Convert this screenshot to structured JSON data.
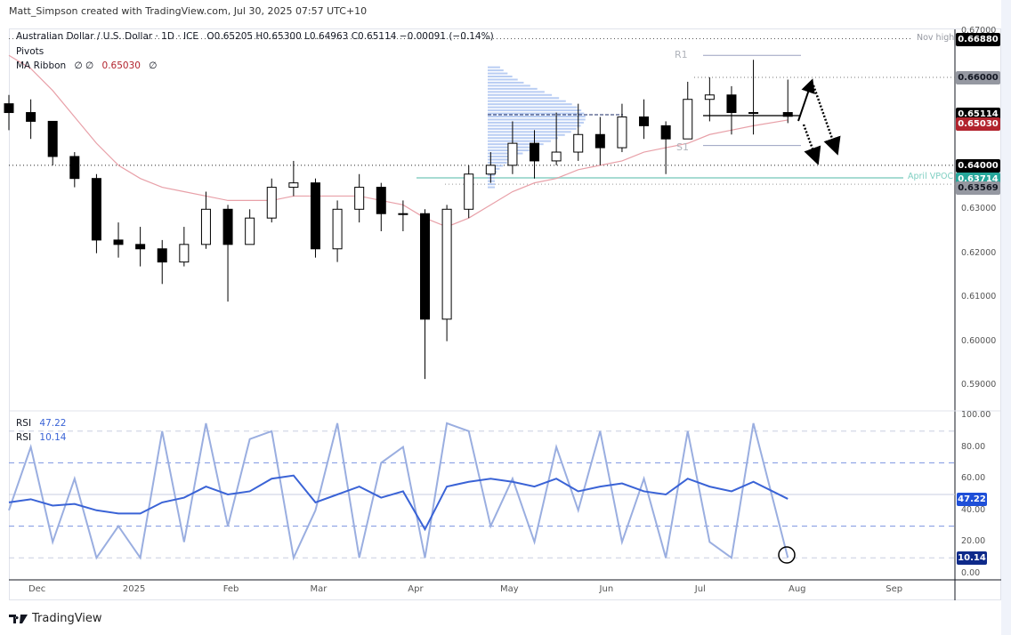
{
  "credit": "Matt_Simpson created with TradingView.com, Jul 30, 2025 07:57 UTC+10",
  "legend": {
    "symbol": "Australian Dollar / U.S. Dollar · 1D · ICE",
    "ohlc": "O0.65205 H0.65300 L0.64963 C0.65114 −0.00091 (−0.14%)",
    "pivots": "Pivots",
    "ma_label": "MA Ribbon",
    "ma_params": "∅ ∅",
    "ma_value": "0.65030",
    "ma_tail": "∅",
    "rsi1_label": "RSI",
    "rsi1_value": "47.22",
    "rsi2_label": "RSI",
    "rsi2_value": "10.14"
  },
  "annotations": {
    "nov_high": "Nov high",
    "april_vpoc": "April VPOC",
    "r1": "R1",
    "s1": "S1"
  },
  "footer": {
    "brand": "TradingView"
  },
  "colors": {
    "up": "#ffffff",
    "down": "#000000",
    "ma": "#e8a0a8",
    "rsi14": "#3a63d6",
    "rsi2": "#9aaee0",
    "vpoc": "#26a69a",
    "profile": "#a8c0f0",
    "ma_badge": "#b2232d"
  },
  "chart_data": {
    "type": "candlestick",
    "note_interval": "weekly approximation of daily candles",
    "dates": [
      "2024-11-22",
      "2024-11-29",
      "2024-12-06",
      "2024-12-13",
      "2024-12-20",
      "2024-12-27",
      "2025-01-03",
      "2025-01-10",
      "2025-01-17",
      "2025-01-24",
      "2025-01-31",
      "2025-02-07",
      "2025-02-14",
      "2025-02-21",
      "2025-02-28",
      "2025-03-07",
      "2025-03-14",
      "2025-03-21",
      "2025-03-28",
      "2025-04-04",
      "2025-04-11",
      "2025-04-18",
      "2025-04-25",
      "2025-05-02",
      "2025-05-09",
      "2025-05-16",
      "2025-05-23",
      "2025-05-30",
      "2025-06-06",
      "2025-06-13",
      "2025-06-20",
      "2025-06-27",
      "2025-07-04",
      "2025-07-11",
      "2025-07-18",
      "2025-07-29"
    ],
    "close": [
      0.652,
      0.65,
      0.642,
      0.637,
      0.623,
      0.622,
      0.621,
      0.618,
      0.622,
      0.63,
      0.622,
      0.628,
      0.635,
      0.636,
      0.621,
      0.63,
      0.635,
      0.629,
      0.629,
      0.605,
      0.63,
      0.638,
      0.64,
      0.645,
      0.641,
      0.643,
      0.647,
      0.644,
      0.651,
      0.649,
      0.646,
      0.655,
      0.656,
      0.652,
      0.652,
      0.65114
    ],
    "high": [
      0.656,
      0.655,
      0.65,
      0.643,
      0.638,
      0.627,
      0.626,
      0.623,
      0.626,
      0.634,
      0.631,
      0.63,
      0.637,
      0.641,
      0.637,
      0.632,
      0.638,
      0.636,
      0.632,
      0.63,
      0.631,
      0.64,
      0.643,
      0.65,
      0.648,
      0.652,
      0.654,
      0.651,
      0.654,
      0.655,
      0.65,
      0.659,
      0.66,
      0.658,
      0.664,
      0.6595
    ],
    "low": [
      0.648,
      0.646,
      0.64,
      0.635,
      0.62,
      0.619,
      0.617,
      0.613,
      0.617,
      0.621,
      0.609,
      0.622,
      0.627,
      0.633,
      0.619,
      0.618,
      0.627,
      0.625,
      0.625,
      0.5914,
      0.6,
      0.628,
      0.636,
      0.638,
      0.637,
      0.64,
      0.641,
      0.64,
      0.643,
      0.646,
      0.638,
      0.647,
      0.65,
      0.647,
      0.647,
      0.6496
    ],
    "ma_ribbon": [
      0.665,
      0.662,
      0.657,
      0.651,
      0.645,
      0.64,
      0.637,
      0.635,
      0.634,
      0.633,
      0.632,
      0.632,
      0.632,
      0.633,
      0.633,
      0.633,
      0.633,
      0.632,
      0.631,
      0.628,
      0.626,
      0.628,
      0.631,
      0.634,
      0.636,
      0.637,
      0.639,
      0.64,
      0.641,
      0.643,
      0.644,
      0.645,
      0.647,
      0.648,
      0.649,
      0.6503
    ],
    "rsi14": [
      45,
      47,
      43,
      44,
      40,
      38,
      38,
      45,
      48,
      55,
      50,
      52,
      60,
      62,
      45,
      50,
      55,
      48,
      52,
      28,
      55,
      58,
      60,
      58,
      55,
      60,
      52,
      55,
      57,
      52,
      50,
      60,
      55,
      52,
      58,
      47.22
    ],
    "rsi2": [
      40,
      80,
      20,
      60,
      10,
      30,
      10,
      90,
      20,
      95,
      30,
      85,
      90,
      10,
      40,
      95,
      10,
      70,
      80,
      10,
      95,
      90,
      30,
      60,
      20,
      80,
      40,
      90,
      20,
      60,
      10,
      90,
      20,
      10,
      95,
      10.14
    ],
    "levels": {
      "nov_high": 0.6688,
      "resistance": 0.66,
      "pivot": 0.6513,
      "support": 0.64,
      "april_vpoc": 0.63714,
      "low_level": 0.63569,
      "r1": 0.665,
      "s1": 0.6445
    },
    "price_ticks": [
      "0.67000",
      "0.66880",
      "0.66000",
      "0.65114",
      "0.65030",
      "0.64000",
      "0.63714",
      "0.63569",
      "0.63000",
      "0.62000",
      "0.61000",
      "0.60000",
      "0.59000"
    ],
    "rsi_ticks": [
      "100.00",
      "80.00",
      "60.00",
      "40.00",
      "20.00",
      "0.00"
    ],
    "rsi_levels": [
      90,
      70,
      50,
      30,
      10
    ],
    "time_labels": [
      {
        "label": "Dec",
        "date": "2024-12-01"
      },
      {
        "label": "2025",
        "date": "2025-01-01"
      },
      {
        "label": "Feb",
        "date": "2025-02-01"
      },
      {
        "label": "Mar",
        "date": "2025-03-01"
      },
      {
        "label": "Apr",
        "date": "2025-04-01"
      },
      {
        "label": "May",
        "date": "2025-05-01"
      },
      {
        "label": "Jun",
        "date": "2025-06-01"
      },
      {
        "label": "Jul",
        "date": "2025-07-01"
      },
      {
        "label": "Aug",
        "date": "2025-08-01"
      },
      {
        "label": "Sep",
        "date": "2025-09-01"
      }
    ],
    "yscale": "linear"
  }
}
